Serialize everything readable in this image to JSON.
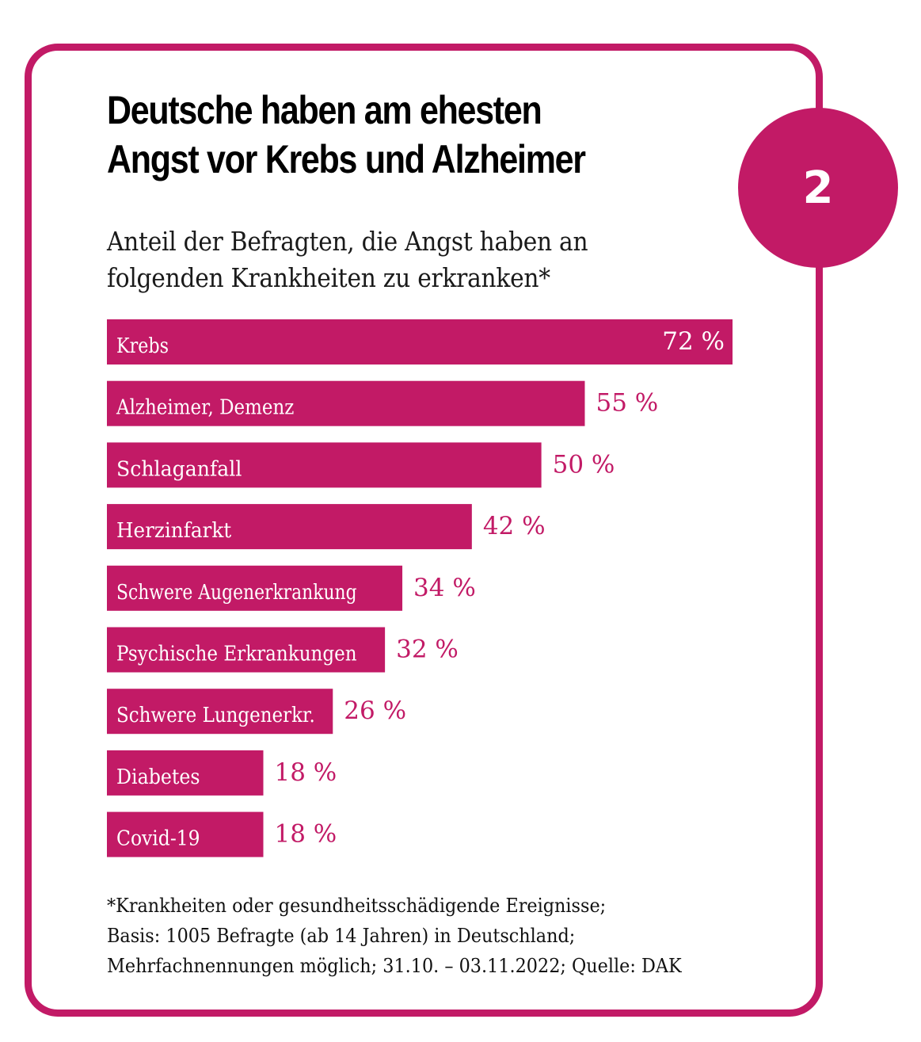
{
  "badge": {
    "number": "2"
  },
  "title_lines": [
    "Deutsche haben am ehesten",
    "Angst vor Krebs und Alzheimer"
  ],
  "subtitle_lines": [
    "Anteil der Befragten, die Angst haben an",
    "folgenden Krankheiten zu erkranken*"
  ],
  "colors": {
    "accent": "#c21a66",
    "text": "#000000",
    "bar_text": "#ffffff"
  },
  "chart_data": {
    "type": "bar",
    "orientation": "horizontal",
    "title": "Deutsche haben am ehesten Angst vor Krebs und Alzheimer",
    "subtitle": "Anteil der Befragten, die Angst haben an folgenden Krankheiten zu erkranken*",
    "xlabel": "",
    "ylabel": "",
    "unit": "%",
    "xlim": [
      0,
      72
    ],
    "grid": false,
    "legend": "none",
    "categories": [
      "Krebs",
      "Alzheimer, Demenz",
      "Schlaganfall",
      "Herzinfarkt",
      "Schwere Augenerkrankung",
      "Psychische Erkrankungen",
      "Schwere Lungenerkr.",
      "Diabetes",
      "Covid-19"
    ],
    "values": [
      72,
      55,
      50,
      42,
      34,
      32,
      26,
      18,
      18
    ],
    "value_labels": [
      "72 %",
      "55 %",
      "50 %",
      "42 %",
      "34 %",
      "32 %",
      "26 %",
      "18 %",
      "18 %"
    ]
  },
  "footnote_lines": [
    "*Krankheiten oder gesundheitsschädigende Ereignisse;",
    "Basis: 1005 Befragte (ab 14 Jahren) in Deutschland;",
    "Mehrfachnennungen möglich; 31.10. – 03.11.2022; Quelle: DAK"
  ]
}
